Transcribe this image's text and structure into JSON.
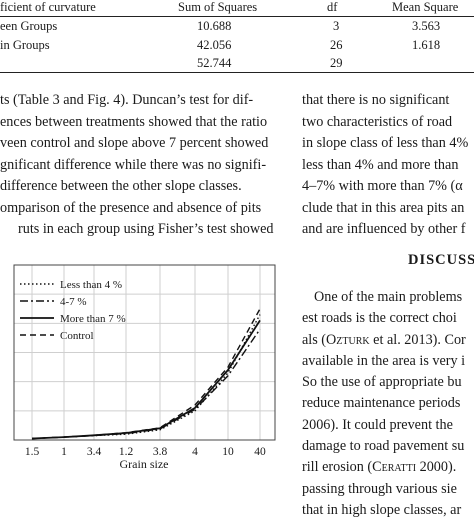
{
  "table": {
    "headers": [
      "ficient of curvature",
      "Sum of Squares",
      "df",
      "Mean Square"
    ],
    "rows": [
      [
        "een Groups",
        "10.688",
        "3",
        "3.563"
      ],
      [
        "in Groups",
        "42.056",
        "26",
        "1.618"
      ],
      [
        "",
        "52.744",
        "29",
        ""
      ]
    ]
  },
  "left_paragraph": [
    "ts (Table 3 and Fig. 4). Duncan’s test for dif-",
    "ences between treatments showed that the ratio",
    "veen control and slope above 7 percent showed",
    "gnificant difference while there was no signifi-",
    " difference between the other slope classes.",
    "omparison of the presence and absence of pits",
    "ruts in each group using Fisher’s test showed"
  ],
  "right_paragraph_top": [
    "that there is no significant",
    "two characteristics of road",
    "in slope class of less than 4%",
    "less than 4% and more than",
    "4–7% with more than 7% (α",
    "clude that in this area pits an",
    "and are influenced by other f"
  ],
  "section_heading": "DISCUSS",
  "right_paragraph_bottom": {
    "line1": "One of the main problems",
    "line2": "est roads is the correct choi",
    "line3_pre": "als (",
    "line3_sc": "Ozturk",
    "line3_post": " et al. 2013). Cor",
    "line4": "available in the area is very i",
    "line5": "So the use of appropriate bu",
    "line6": "reduce maintenance periods",
    "line7": "2006). It could prevent the",
    "line8": "damage to road pavement su",
    "line9_pre": "rill erosion (",
    "line9_sc": "Ceratti",
    "line9_post": " 2000).",
    "line10": "passing through various sie",
    "line11": "that in high slope classes, ar"
  },
  "chart_data": {
    "type": "line",
    "categories": [
      "1.5",
      "1",
      "3.4",
      "1.2",
      "3.8",
      "4",
      "10",
      "40"
    ],
    "xlabel": "Grain size",
    "ylabel": "",
    "legend_position": "top-left",
    "series": [
      {
        "name": "Less than 4 %",
        "style": "dotted",
        "values": [
          0.5,
          1.0,
          1.5,
          2.0,
          3.5,
          10.0,
          23.0,
          43.0
        ]
      },
      {
        "name": "4-7 %",
        "style": "dashdot",
        "values": [
          0.5,
          1.0,
          1.5,
          2.2,
          3.8,
          10.5,
          22.0,
          38.0
        ]
      },
      {
        "name": "More than 7 %",
        "style": "solid",
        "values": [
          0.5,
          1.0,
          1.6,
          2.4,
          4.0,
          11.0,
          24.0,
          41.0
        ]
      },
      {
        "name": "Control",
        "style": "dashed",
        "values": [
          0.5,
          1.0,
          1.6,
          2.5,
          4.2,
          12.0,
          25.0,
          45.0
        ]
      }
    ],
    "ylim": [
      0,
      60
    ],
    "grid": true
  },
  "colors": {
    "text": "#1a1a1a",
    "line": "#111111",
    "grid": "#cfcfcf"
  }
}
